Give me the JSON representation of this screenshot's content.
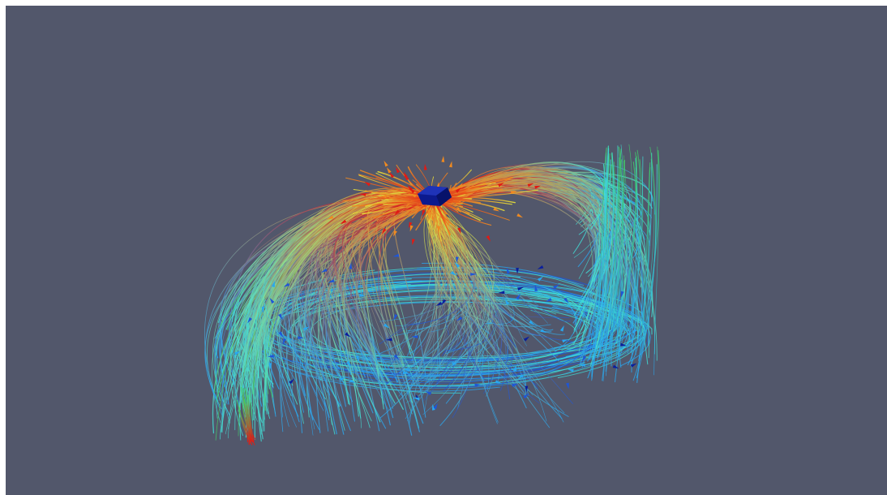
{
  "scene": {
    "background_color": "#52576b",
    "page_color": "#ffffff",
    "colormap": [
      "#0a1f9e",
      "#1e56d8",
      "#29a7f0",
      "#3fe0d8",
      "#3fd06a",
      "#e6e23a",
      "#f08a20",
      "#e11a14"
    ],
    "source_object": {
      "icon": "cube-icon",
      "color": "#0c1a8e"
    },
    "description_kind": "3D streamline visualization with glyph arrows"
  }
}
